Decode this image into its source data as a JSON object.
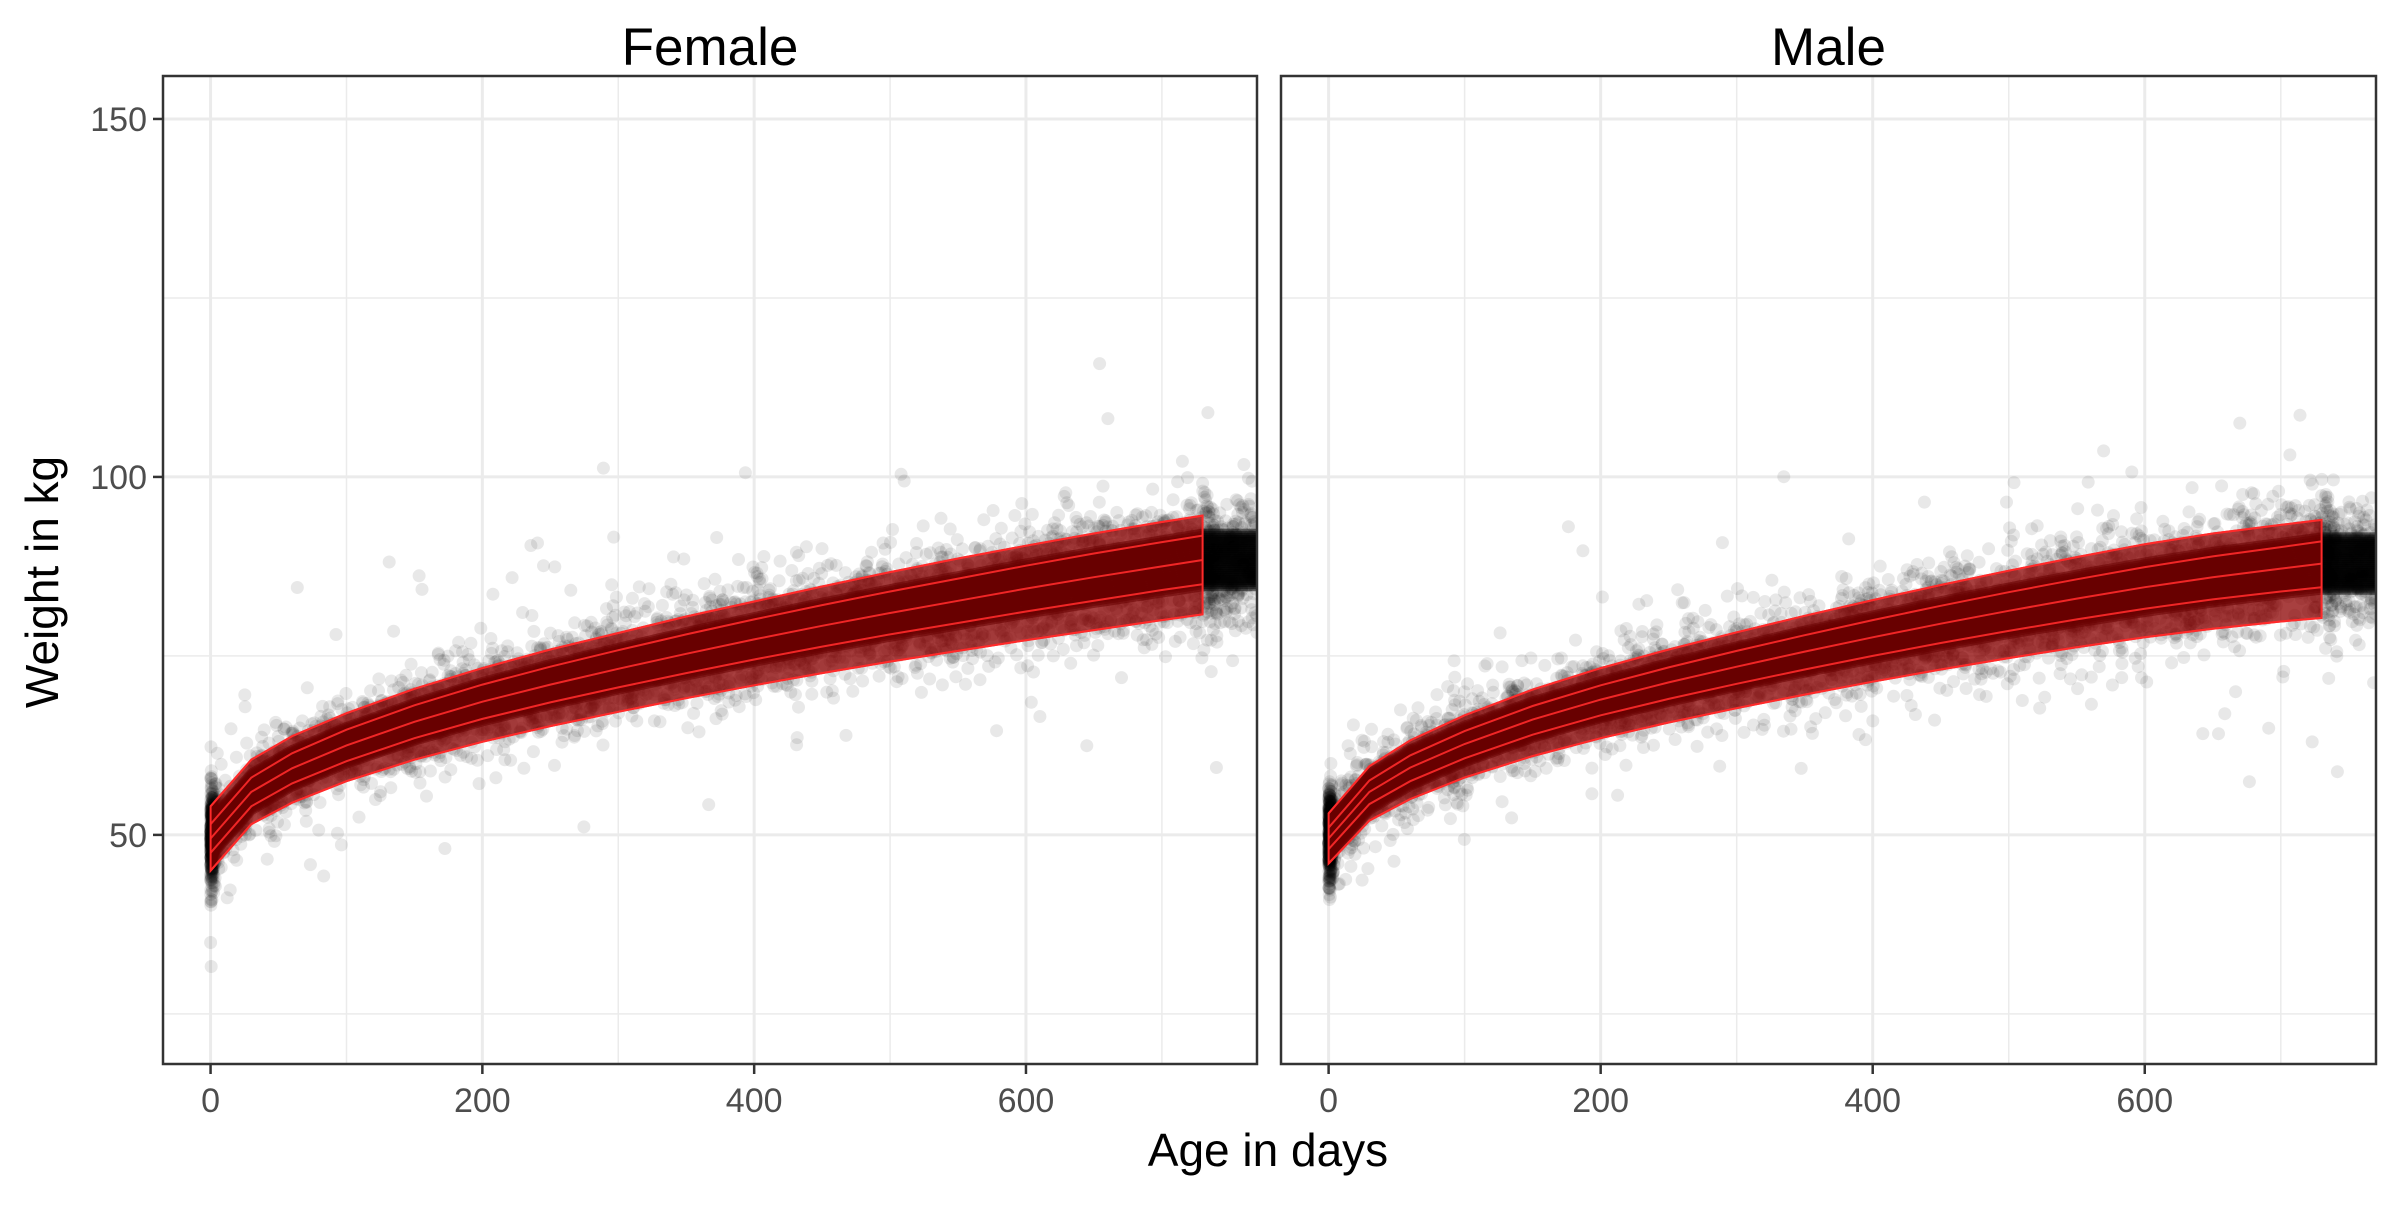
{
  "chart_data": {
    "type": "scatter",
    "xlabel": "Age in days",
    "ylabel": "Weight in kg",
    "xlim": [
      -35,
      770
    ],
    "ylim": [
      18,
      156
    ],
    "x_ticks": [
      0,
      200,
      400,
      600
    ],
    "y_ticks": [
      50,
      100,
      150
    ],
    "x_minor_ticks": [
      100,
      300,
      500,
      700
    ],
    "y_minor_ticks": [
      25,
      75,
      125
    ],
    "grid": true,
    "legend": "none",
    "colors": {
      "points": "#000000",
      "band_fill": "#8b0000",
      "centile_line": "#ff2a2a",
      "grid": "#ebebeb",
      "frame": "#333333",
      "tick_label": "#4d4d4d"
    },
    "centile_band_x_range": [
      0,
      730
    ],
    "panels": [
      {
        "title": "Female",
        "centiles": [
          {
            "x": [
              0,
              30,
              60,
              100,
              150,
              200,
              250,
              300,
              350,
              400,
              450,
              500,
              550,
              600,
              650,
              700,
              730
            ],
            "y": [
              45,
              51.5,
              54.5,
              57.5,
              60.5,
              63,
              65.2,
              67.2,
              69.1,
              70.9,
              72.6,
              74.2,
              75.7,
              77.2,
              78.6,
              80,
              80.8
            ]
          },
          {
            "x": [
              0,
              30,
              60,
              100,
              150,
              200,
              250,
              300,
              350,
              400,
              450,
              500,
              550,
              600,
              650,
              700,
              730
            ],
            "y": [
              47.5,
              54,
              57.2,
              60.3,
              63.5,
              66.2,
              68.5,
              70.6,
              72.6,
              74.5,
              76.3,
              78,
              79.6,
              81.2,
              82.7,
              84.2,
              85
            ]
          },
          {
            "x": [
              0,
              30,
              60,
              100,
              150,
              200,
              250,
              300,
              350,
              400,
              450,
              500,
              550,
              600,
              650,
              700,
              730
            ],
            "y": [
              49.5,
              56,
              59.3,
              62.5,
              65.8,
              68.6,
              71,
              73.2,
              75.3,
              77.3,
              79.2,
              81,
              82.7,
              84.4,
              86,
              87.5,
              88.4
            ]
          },
          {
            "x": [
              0,
              30,
              60,
              100,
              150,
              200,
              250,
              300,
              350,
              400,
              450,
              500,
              550,
              600,
              650,
              700,
              730
            ],
            "y": [
              51.5,
              58,
              61.4,
              64.7,
              68.1,
              71,
              73.5,
              75.8,
              78,
              80.1,
              82.1,
              84,
              85.8,
              87.6,
              89.3,
              90.9,
              91.8
            ]
          },
          {
            "x": [
              0,
              30,
              60,
              100,
              150,
              200,
              250,
              300,
              350,
              400,
              450,
              500,
              550,
              600,
              650,
              700,
              730
            ],
            "y": [
              54,
              60.5,
              63.8,
              67,
              70.4,
              73.3,
              75.9,
              78.2,
              80.5,
              82.6,
              84.7,
              86.7,
              88.6,
              90.4,
              92.1,
              93.7,
              94.6
            ]
          }
        ]
      },
      {
        "title": "Male",
        "centiles": [
          {
            "x": [
              0,
              30,
              60,
              100,
              150,
              200,
              250,
              300,
              350,
              400,
              450,
              500,
              550,
              600,
              650,
              700,
              730
            ],
            "y": [
              46,
              52,
              55,
              58,
              61,
              63.5,
              65.7,
              67.7,
              69.6,
              71.4,
              73.1,
              74.7,
              76.2,
              77.6,
              78.8,
              79.8,
              80.3
            ]
          },
          {
            "x": [
              0,
              30,
              60,
              100,
              150,
              200,
              250,
              300,
              350,
              400,
              450,
              500,
              550,
              600,
              650,
              700,
              730
            ],
            "y": [
              48,
              54.3,
              57.5,
              60.7,
              64,
              66.7,
              69,
              71.1,
              73.1,
              75,
              76.8,
              78.5,
              80.1,
              81.6,
              82.9,
              84,
              84.6
            ]
          },
          {
            "x": [
              0,
              30,
              60,
              100,
              150,
              200,
              250,
              300,
              350,
              400,
              450,
              500,
              550,
              600,
              650,
              700,
              730
            ],
            "y": [
              49.5,
              56,
              59.4,
              62.7,
              66.1,
              68.9,
              71.3,
              73.5,
              75.6,
              77.6,
              79.5,
              81.3,
              83,
              84.6,
              86,
              87.2,
              87.9
            ]
          },
          {
            "x": [
              0,
              30,
              60,
              100,
              150,
              200,
              250,
              300,
              350,
              400,
              450,
              500,
              550,
              600,
              650,
              700,
              730
            ],
            "y": [
              51,
              57.6,
              61.1,
              64.5,
              68,
              70.9,
              73.4,
              75.7,
              77.9,
              80,
              82,
              83.9,
              85.7,
              87.4,
              88.9,
              90.2,
              91
            ]
          },
          {
            "x": [
              0,
              30,
              60,
              100,
              150,
              200,
              250,
              300,
              350,
              400,
              450,
              500,
              550,
              600,
              650,
              700,
              730
            ],
            "y": [
              53,
              59.6,
              63.2,
              66.7,
              70.3,
              73.3,
              75.9,
              78.3,
              80.6,
              82.8,
              84.9,
              86.9,
              88.8,
              90.6,
              92.1,
              93.3,
              94
            ]
          }
        ]
      }
    ]
  }
}
